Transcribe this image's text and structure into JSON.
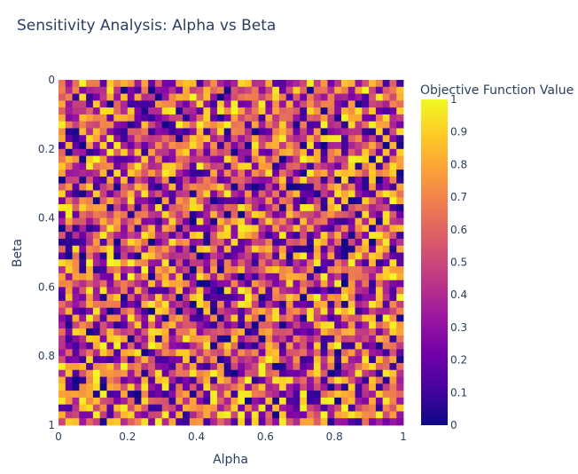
{
  "chart_data": {
    "type": "heatmap",
    "title": "Sensitivity Analysis: Alpha vs Beta",
    "xlabel": "Alpha",
    "ylabel": "Beta",
    "xlim": [
      0,
      1
    ],
    "ylim": [
      0,
      1
    ],
    "y_reversed": true,
    "x_ticks": [
      "0",
      "0.2",
      "0.4",
      "0.6",
      "0.8",
      "1"
    ],
    "y_ticks": [
      "0",
      "0.2",
      "0.4",
      "0.6",
      "0.8",
      "1"
    ],
    "grid_resolution": [
      50,
      50
    ],
    "z_values_note": "",
    "colorbar": {
      "title": "Objective Function Value",
      "range": [
        0,
        1
      ],
      "ticks": [
        "0",
        "0.1",
        "0.2",
        "0.3",
        "0.4",
        "0.5",
        "0.6",
        "0.7",
        "0.8",
        "0.9",
        "1"
      ],
      "colorscale": [
        "#0d0887",
        "#46039f",
        "#7201a8",
        "#9c179e",
        "#bd3786",
        "#d8576b",
        "#ed7953",
        "#fb9f3a",
        "#fdca26",
        "#f0f921"
      ]
    }
  }
}
